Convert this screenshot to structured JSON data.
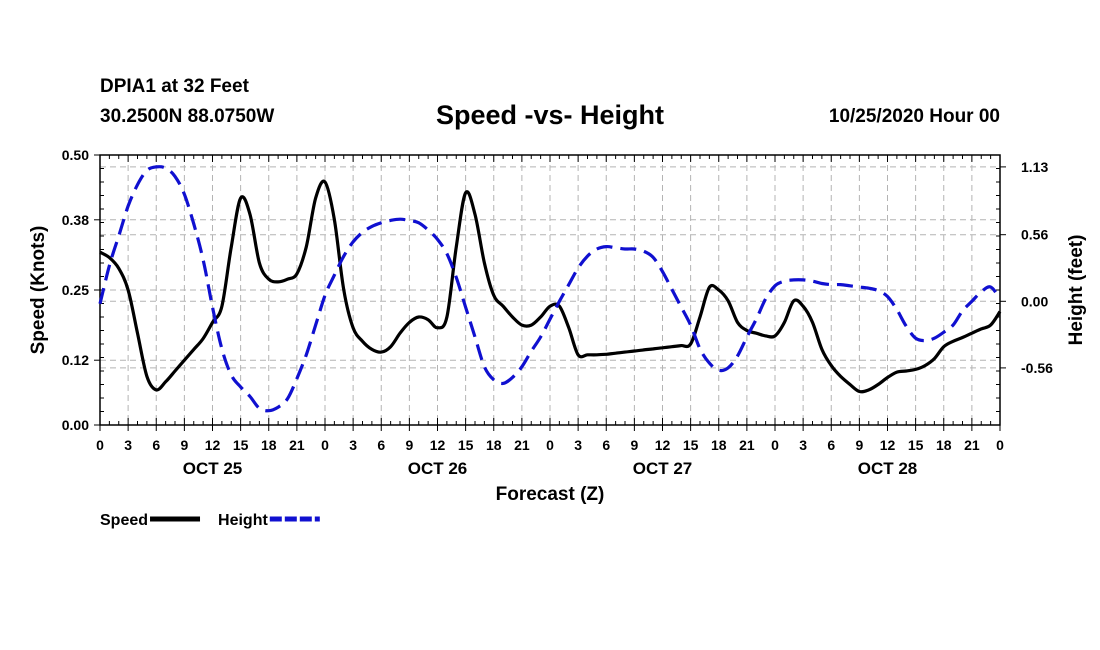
{
  "header": {
    "station": "DPIA1 at 32 Feet",
    "coords": "30.2500N 88.0750W",
    "date": "10/25/2020 Hour 00"
  },
  "colors": {
    "speed": "#000000",
    "height": "#1010d0",
    "grid": "#b4b4b4"
  },
  "chart_data": {
    "type": "line",
    "title": "Speed -vs- Height",
    "xlabel": "Forecast (Z)",
    "ylabel": "Speed (Knots)",
    "y2label": "Height (feet)",
    "x_start_hour": 0,
    "x_end_hour": 96,
    "ylim": [
      0,
      0.5
    ],
    "y2lim": [
      -1.04,
      1.23
    ],
    "yticks": [
      "0.00",
      "0.12",
      "0.25",
      "0.38",
      "0.50"
    ],
    "y2ticks": [
      "-0.56",
      "0.00",
      "0.56",
      "1.13"
    ],
    "y2tick_values": [
      -0.56,
      0.0,
      0.56,
      1.13
    ],
    "xtick_labels": [
      "0",
      "3",
      "6",
      "9",
      "12",
      "15",
      "18",
      "21",
      "0",
      "3",
      "6",
      "9",
      "12",
      "15",
      "18",
      "21",
      "0",
      "3",
      "6",
      "9",
      "12",
      "15",
      "18",
      "21",
      "0",
      "3",
      "6",
      "9",
      "12",
      "15",
      "18",
      "21",
      "0"
    ],
    "day_labels": [
      {
        "label": "OCT 25",
        "hour": 12
      },
      {
        "label": "OCT 26",
        "hour": 36
      },
      {
        "label": "OCT 27",
        "hour": 60
      },
      {
        "label": "OCT 28",
        "hour": 84
      }
    ],
    "series": [
      {
        "name": "Speed",
        "axis": "left",
        "style": "solid",
        "x": [
          0,
          1,
          2,
          3,
          4,
          5,
          6,
          7,
          8,
          9,
          10,
          11,
          12,
          13,
          14,
          15,
          16,
          17,
          18,
          19,
          20,
          21,
          22,
          23,
          24,
          25,
          26,
          27,
          28,
          29,
          30,
          31,
          32,
          33,
          34,
          35,
          36,
          37,
          38,
          39,
          40,
          41,
          42,
          43,
          44,
          45,
          46,
          47,
          48,
          49,
          50,
          51,
          52,
          53,
          54,
          55,
          56,
          57,
          58,
          59,
          60,
          61,
          62,
          63,
          64,
          65,
          66,
          67,
          68,
          69,
          70,
          71,
          72,
          73,
          74,
          75,
          76,
          77,
          78,
          79,
          80,
          81,
          82,
          83,
          84,
          85,
          86,
          87,
          88,
          89,
          90,
          91,
          92,
          93,
          94,
          95,
          96
        ],
        "values": [
          0.32,
          0.31,
          0.29,
          0.25,
          0.17,
          0.09,
          0.065,
          0.08,
          0.1,
          0.12,
          0.14,
          0.16,
          0.19,
          0.22,
          0.33,
          0.42,
          0.39,
          0.3,
          0.27,
          0.265,
          0.27,
          0.28,
          0.33,
          0.42,
          0.45,
          0.38,
          0.25,
          0.18,
          0.155,
          0.14,
          0.135,
          0.145,
          0.17,
          0.19,
          0.2,
          0.195,
          0.18,
          0.2,
          0.33,
          0.43,
          0.39,
          0.3,
          0.24,
          0.22,
          0.2,
          0.185,
          0.185,
          0.2,
          0.22,
          0.22,
          0.18,
          0.13,
          0.13,
          0.13,
          0.131,
          0.133,
          0.135,
          0.137,
          0.139,
          0.141,
          0.143,
          0.145,
          0.147,
          0.15,
          0.2,
          0.255,
          0.25,
          0.23,
          0.19,
          0.175,
          0.17,
          0.165,
          0.165,
          0.19,
          0.23,
          0.22,
          0.19,
          0.14,
          0.11,
          0.09,
          0.075,
          0.062,
          0.065,
          0.075,
          0.088,
          0.098,
          0.1,
          0.103,
          0.11,
          0.123,
          0.145,
          0.155,
          0.162,
          0.17,
          0.178,
          0.185,
          0.21
        ]
      },
      {
        "name": "Height",
        "axis": "right",
        "style": "dashed",
        "x": [
          0,
          1,
          2,
          3,
          4,
          5,
          6,
          7,
          8,
          9,
          10,
          11,
          12,
          13,
          14,
          15,
          16,
          17,
          18,
          19,
          20,
          21,
          22,
          23,
          24,
          25,
          26,
          27,
          28,
          29,
          30,
          31,
          32,
          33,
          34,
          35,
          36,
          37,
          38,
          39,
          40,
          41,
          42,
          43,
          44,
          45,
          46,
          47,
          48,
          49,
          50,
          51,
          52,
          53,
          54,
          55,
          56,
          57,
          58,
          59,
          60,
          61,
          62,
          63,
          64,
          65,
          66,
          67,
          68,
          69,
          70,
          71,
          72,
          73,
          74,
          75,
          76,
          77,
          78,
          79,
          80,
          81,
          82,
          83,
          84,
          85,
          86,
          87,
          88,
          89,
          90,
          91,
          92,
          93,
          94,
          95,
          96
        ],
        "values": [
          -0.02,
          0.3,
          0.55,
          0.8,
          0.98,
          1.1,
          1.13,
          1.12,
          1.05,
          0.9,
          0.65,
          0.35,
          -0.05,
          -0.4,
          -0.62,
          -0.72,
          -0.8,
          -0.9,
          -0.92,
          -0.89,
          -0.82,
          -0.65,
          -0.45,
          -0.2,
          0.05,
          0.22,
          0.38,
          0.5,
          0.58,
          0.63,
          0.66,
          0.68,
          0.69,
          0.68,
          0.66,
          0.6,
          0.52,
          0.4,
          0.2,
          -0.05,
          -0.3,
          -0.55,
          -0.66,
          -0.69,
          -0.64,
          -0.55,
          -0.42,
          -0.3,
          -0.15,
          0.0,
          0.14,
          0.28,
          0.38,
          0.44,
          0.46,
          0.45,
          0.44,
          0.44,
          0.42,
          0.37,
          0.25,
          0.1,
          -0.05,
          -0.2,
          -0.4,
          -0.52,
          -0.58,
          -0.56,
          -0.46,
          -0.3,
          -0.15,
          0.02,
          0.13,
          0.17,
          0.18,
          0.18,
          0.17,
          0.15,
          0.14,
          0.14,
          0.13,
          0.12,
          0.11,
          0.09,
          0.04,
          -0.07,
          -0.21,
          -0.31,
          -0.33,
          -0.31,
          -0.26,
          -0.2,
          -0.08,
          0.0,
          0.08,
          0.12,
          0.02
        ]
      }
    ],
    "legend": [
      {
        "label": "Speed",
        "style": "solid"
      },
      {
        "label": "Height",
        "style": "dashed"
      }
    ]
  }
}
